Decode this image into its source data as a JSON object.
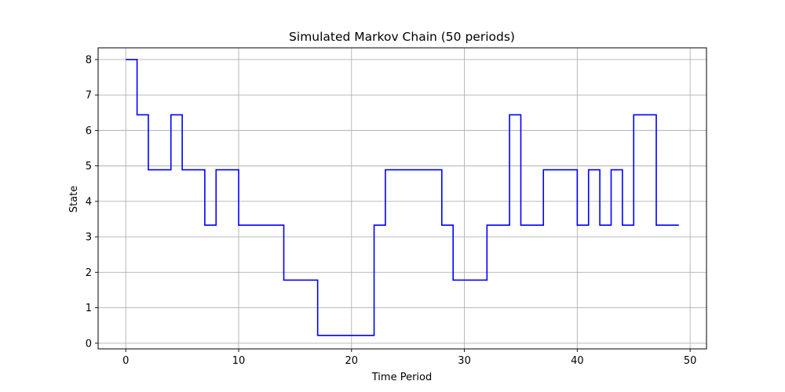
{
  "chart_data": {
    "type": "line",
    "step": "post",
    "title": "Simulated Markov Chain (50 periods)",
    "xlabel": "Time Period",
    "ylabel": "State",
    "xlim": [
      -2.45,
      51.45
    ],
    "ylim": [
      -0.16,
      8.33
    ],
    "xticks": [
      0,
      10,
      20,
      30,
      40,
      50
    ],
    "yticks": [
      0,
      1,
      2,
      3,
      4,
      5,
      6,
      7,
      8
    ],
    "grid": true,
    "series": [
      {
        "color": "#0000ff",
        "x": [
          0,
          1,
          2,
          3,
          4,
          5,
          6,
          7,
          8,
          9,
          10,
          11,
          12,
          13,
          14,
          15,
          16,
          17,
          18,
          19,
          20,
          21,
          22,
          23,
          24,
          25,
          26,
          27,
          28,
          29,
          30,
          31,
          32,
          33,
          34,
          35,
          36,
          37,
          38,
          39,
          40,
          41,
          42,
          43,
          44,
          45,
          46,
          47,
          48,
          49
        ],
        "y": [
          8.0,
          6.44,
          4.89,
          4.89,
          6.44,
          4.89,
          4.89,
          3.33,
          4.89,
          4.89,
          3.33,
          3.33,
          3.33,
          3.33,
          1.78,
          1.78,
          1.78,
          0.22,
          0.22,
          0.22,
          0.22,
          0.22,
          3.33,
          4.89,
          4.89,
          4.89,
          4.89,
          4.89,
          3.33,
          1.78,
          1.78,
          1.78,
          3.33,
          3.33,
          6.44,
          3.33,
          3.33,
          4.89,
          4.89,
          4.89,
          3.33,
          4.89,
          3.33,
          4.89,
          3.33,
          6.44,
          6.44,
          3.33,
          3.33,
          3.33
        ]
      }
    ]
  }
}
